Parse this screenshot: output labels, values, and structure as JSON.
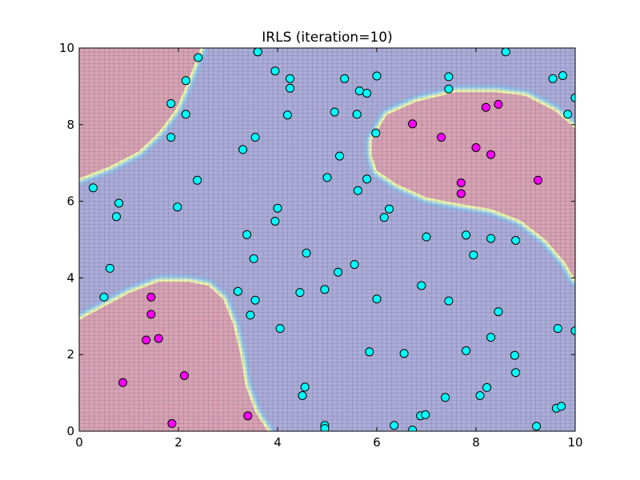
{
  "chart_data": {
    "type": "scatter",
    "title": "IRLS (iteration=10)",
    "xlabel": "",
    "ylabel": "",
    "xlim": [
      0,
      10
    ],
    "ylim": [
      0,
      10
    ],
    "xticks": [
      "0",
      "2",
      "4",
      "6",
      "8",
      "10"
    ],
    "yticks": [
      "0",
      "2",
      "4",
      "6",
      "8",
      "10"
    ],
    "grid": false,
    "background_regions": {
      "colors": {
        "positive": "#d8a3b3",
        "negative": "#acacd8",
        "boundary": "#ffff99",
        "mesh": "#2a2a55"
      },
      "positive_regions": [
        {
          "name": "top-left",
          "outline": [
            [
              0,
              6.6
            ],
            [
              0.6,
              6.9
            ],
            [
              1.2,
              7.3
            ],
            [
              1.6,
              7.8
            ],
            [
              1.95,
              8.4
            ],
            [
              2.15,
              9.0
            ],
            [
              2.3,
              9.5
            ],
            [
              2.45,
              10
            ],
            [
              0,
              10
            ]
          ]
        },
        {
          "name": "bottom-left",
          "outline": [
            [
              0,
              2.9
            ],
            [
              0.5,
              3.25
            ],
            [
              1.0,
              3.6
            ],
            [
              1.6,
              3.9
            ],
            [
              2.2,
              3.9
            ],
            [
              2.6,
              3.8
            ],
            [
              2.9,
              3.45
            ],
            [
              3.1,
              2.8
            ],
            [
              3.25,
              2.0
            ],
            [
              3.35,
              1.2
            ],
            [
              3.55,
              0.5
            ],
            [
              3.8,
              0
            ],
            [
              0,
              0
            ]
          ]
        },
        {
          "name": "right",
          "outline": [
            [
              10,
              7.9
            ],
            [
              9.6,
              8.35
            ],
            [
              9.0,
              8.75
            ],
            [
              8.4,
              8.85
            ],
            [
              7.6,
              8.85
            ],
            [
              6.8,
              8.6
            ],
            [
              6.2,
              8.25
            ],
            [
              5.9,
              7.6
            ],
            [
              5.9,
              7.2
            ],
            [
              6.0,
              6.8
            ],
            [
              6.4,
              6.45
            ],
            [
              7.0,
              6.1
            ],
            [
              7.6,
              5.95
            ],
            [
              8.3,
              5.8
            ],
            [
              8.9,
              5.5
            ],
            [
              9.4,
              5.0
            ],
            [
              9.8,
              4.4
            ],
            [
              10,
              3.95
            ]
          ]
        }
      ]
    },
    "series": [
      {
        "name": "",
        "color": "#ff00ff",
        "points": [
          [
            1.45,
            3.5
          ],
          [
            1.45,
            3.05
          ],
          [
            1.35,
            2.38
          ],
          [
            1.6,
            2.42
          ],
          [
            0.88,
            1.27
          ],
          [
            2.12,
            1.45
          ],
          [
            1.87,
            0.2
          ],
          [
            3.4,
            0.4
          ],
          [
            6.72,
            8.02
          ],
          [
            7.3,
            7.67
          ],
          [
            8.2,
            8.45
          ],
          [
            8.45,
            8.53
          ],
          [
            8.0,
            7.4
          ],
          [
            8.3,
            7.22
          ],
          [
            7.7,
            6.48
          ],
          [
            7.7,
            6.2
          ],
          [
            9.25,
            6.55
          ]
        ]
      },
      {
        "name": "",
        "color": "#00ffff",
        "points": [
          [
            3.6,
            9.9
          ],
          [
            8.6,
            9.9
          ],
          [
            2.4,
            9.75
          ],
          [
            3.95,
            9.4
          ],
          [
            4.25,
            9.2
          ],
          [
            4.25,
            8.95
          ],
          [
            2.15,
            9.15
          ],
          [
            5.35,
            9.2
          ],
          [
            6.0,
            9.27
          ],
          [
            7.45,
            9.25
          ],
          [
            9.55,
            9.2
          ],
          [
            9.75,
            9.28
          ],
          [
            5.65,
            8.88
          ],
          [
            5.8,
            8.82
          ],
          [
            7.45,
            8.93
          ],
          [
            10,
            8.7
          ],
          [
            1.85,
            8.55
          ],
          [
            2.15,
            8.27
          ],
          [
            4.2,
            8.25
          ],
          [
            5.15,
            8.33
          ],
          [
            5.6,
            8.27
          ],
          [
            9.85,
            8.27
          ],
          [
            5.98,
            7.78
          ],
          [
            1.85,
            7.67
          ],
          [
            3.55,
            7.67
          ],
          [
            3.3,
            7.35
          ],
          [
            5.25,
            7.18
          ],
          [
            0.28,
            6.35
          ],
          [
            2.38,
            6.55
          ],
          [
            5.0,
            6.62
          ],
          [
            5.8,
            6.58
          ],
          [
            5.62,
            6.28
          ],
          [
            0.8,
            5.95
          ],
          [
            0.75,
            5.6
          ],
          [
            1.98,
            5.85
          ],
          [
            4.0,
            5.82
          ],
          [
            6.25,
            5.8
          ],
          [
            6.15,
            5.58
          ],
          [
            3.95,
            5.48
          ],
          [
            3.38,
            5.13
          ],
          [
            7.0,
            5.07
          ],
          [
            7.8,
            5.12
          ],
          [
            8.3,
            5.03
          ],
          [
            8.8,
            4.98
          ],
          [
            3.52,
            4.5
          ],
          [
            4.58,
            4.65
          ],
          [
            7.95,
            4.6
          ],
          [
            0.62,
            4.25
          ],
          [
            5.22,
            4.15
          ],
          [
            5.55,
            4.35
          ],
          [
            0.5,
            3.5
          ],
          [
            3.2,
            3.65
          ],
          [
            3.55,
            3.42
          ],
          [
            4.45,
            3.62
          ],
          [
            4.95,
            3.7
          ],
          [
            6.0,
            3.45
          ],
          [
            6.9,
            3.8
          ],
          [
            7.45,
            3.4
          ],
          [
            3.45,
            3.03
          ],
          [
            8.45,
            3.12
          ],
          [
            4.05,
            2.68
          ],
          [
            9.65,
            2.68
          ],
          [
            10,
            2.62
          ],
          [
            8.3,
            2.45
          ],
          [
            5.85,
            2.07
          ],
          [
            6.55,
            2.03
          ],
          [
            7.8,
            2.1
          ],
          [
            8.78,
            1.98
          ],
          [
            8.8,
            1.53
          ],
          [
            4.55,
            1.15
          ],
          [
            4.5,
            0.93
          ],
          [
            7.38,
            0.88
          ],
          [
            8.08,
            0.93
          ],
          [
            8.22,
            1.14
          ],
          [
            4.95,
            0.15
          ],
          [
            4.95,
            0.07
          ],
          [
            6.35,
            0.15
          ],
          [
            6.88,
            0.4
          ],
          [
            6.98,
            0.43
          ],
          [
            6.72,
            0.03
          ],
          [
            9.22,
            0.13
          ],
          [
            9.62,
            0.6
          ],
          [
            9.72,
            0.65
          ]
        ]
      }
    ]
  }
}
